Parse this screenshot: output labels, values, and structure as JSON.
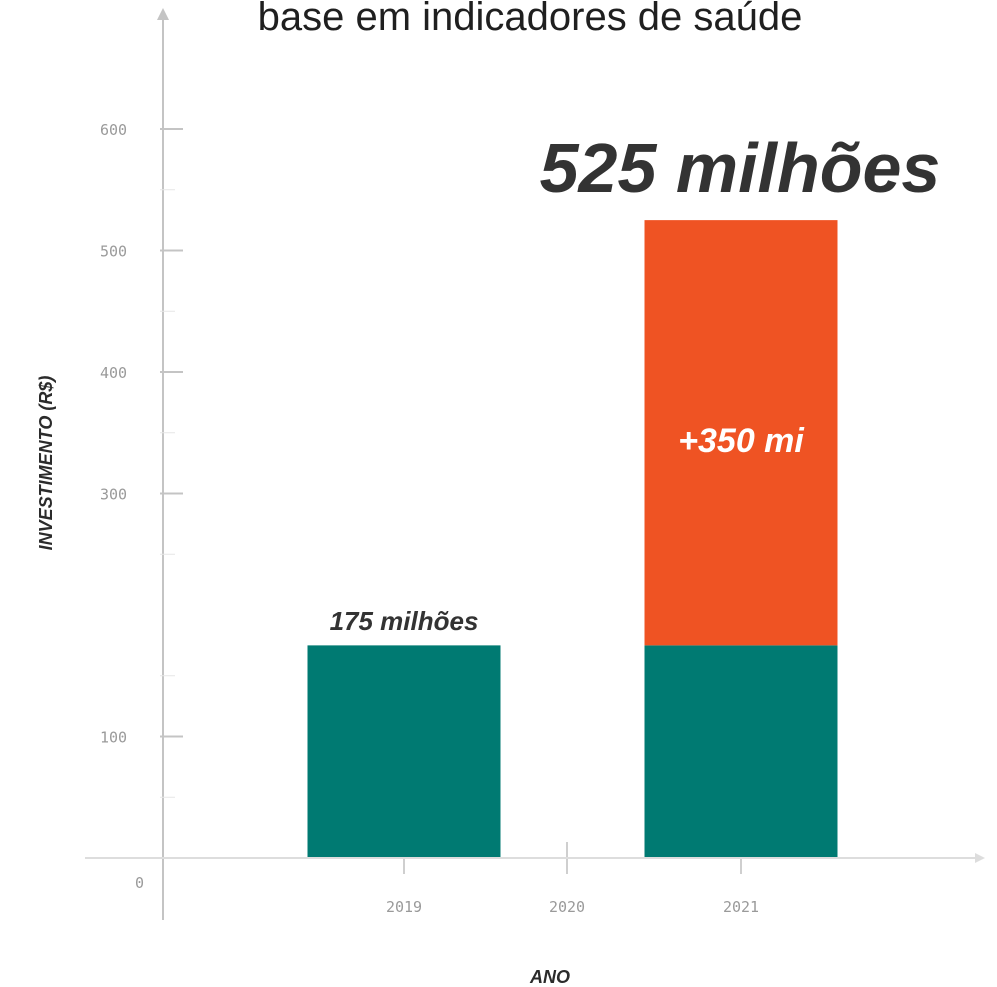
{
  "chart_data": {
    "type": "bar",
    "title": "base em indicadores de saúde",
    "xlabel": "ANO",
    "ylabel": "INVESTIMENTO (R$)",
    "categories": [
      "2019",
      "2020",
      "2021"
    ],
    "series": [
      {
        "name": "",
        "color": "#007a72",
        "values": [
          175,
          0,
          175
        ]
      },
      {
        "name": "",
        "color": "#ef5323",
        "values": [
          0,
          0,
          350
        ]
      }
    ],
    "ylim": [
      0,
      650
    ],
    "yticks": [
      0,
      100,
      300,
      400,
      500,
      600
    ],
    "annotations": {
      "bar_2019": "175 milhões",
      "segment_2021": "+350 mi",
      "total_2021": "525 milhões"
    },
    "grid": false,
    "legend": "none"
  }
}
